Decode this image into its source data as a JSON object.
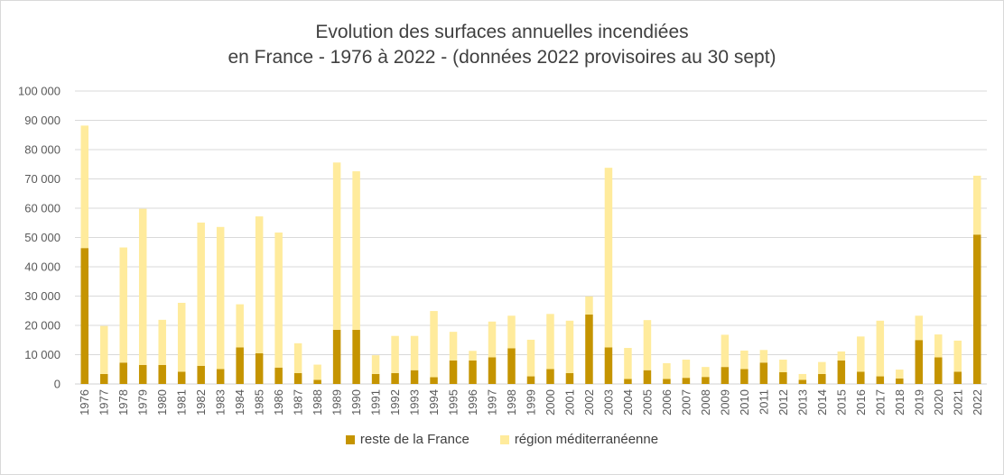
{
  "chart_data": {
    "type": "bar",
    "stacked": true,
    "title": "Evolution des surfaces annuelles incendiées",
    "subtitle": "en France - 1976 à 2022 - (données 2022 provisoires au 30 sept)",
    "xlabel": "",
    "ylabel": "",
    "ylim": [
      0,
      100000
    ],
    "yticks": [
      0,
      10000,
      20000,
      30000,
      40000,
      50000,
      60000,
      70000,
      80000,
      90000,
      100000
    ],
    "ytick_labels": [
      "0",
      "10 000",
      "20 000",
      "30 000",
      "40 000",
      "50 000",
      "60 000",
      "70 000",
      "80 000",
      "90 000",
      "100 000"
    ],
    "grid": true,
    "legend_position": "bottom",
    "categories": [
      "1976",
      "1977",
      "1978",
      "1979",
      "1980",
      "1981",
      "1982",
      "1983",
      "1984",
      "1985",
      "1986",
      "1987",
      "1988",
      "1989",
      "1990",
      "1991",
      "1992",
      "1993",
      "1994",
      "1995",
      "1996",
      "1997",
      "1998",
      "1999",
      "2000",
      "2001",
      "2002",
      "2003",
      "2004",
      "2005",
      "2006",
      "2007",
      "2008",
      "2009",
      "2010",
      "2011",
      "2012",
      "2013",
      "2014",
      "2015",
      "2016",
      "2017",
      "2018",
      "2019",
      "2020",
      "2021",
      "2022"
    ],
    "series": [
      {
        "name": "reste de la France",
        "color": "#c59400",
        "values": [
          46400,
          3400,
          7300,
          6500,
          6500,
          4200,
          6200,
          5100,
          12500,
          10500,
          5600,
          3700,
          1400,
          18500,
          18500,
          3400,
          3700,
          4700,
          2300,
          8000,
          8000,
          9100,
          12200,
          2600,
          5100,
          3700,
          23700,
          12500,
          1700,
          4700,
          1700,
          2100,
          2400,
          5800,
          5100,
          7300,
          4000,
          1400,
          3400,
          8000,
          4200,
          2600,
          1900,
          15000,
          9100,
          4200,
          51000
        ]
      },
      {
        "name": "région méditerranéenne",
        "color": "#ffeb9c",
        "values": [
          41800,
          16400,
          39300,
          53300,
          15400,
          23500,
          48900,
          48500,
          14700,
          46700,
          46100,
          10200,
          5200,
          57100,
          54100,
          6400,
          12700,
          11700,
          22600,
          9800,
          3300,
          12200,
          11100,
          12500,
          18800,
          17900,
          6200,
          61300,
          10600,
          17100,
          5400,
          6200,
          3400,
          11000,
          6300,
          4300,
          4300,
          2000,
          4100,
          3100,
          12000,
          19000,
          3000,
          8300,
          7800,
          10600,
          20100
        ]
      }
    ]
  }
}
